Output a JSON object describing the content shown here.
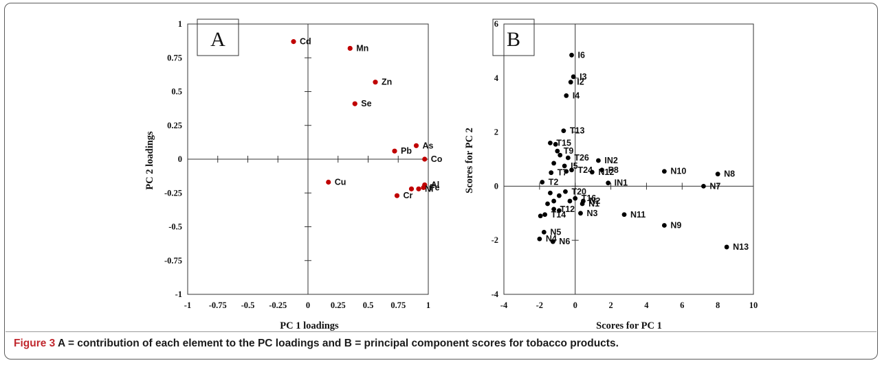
{
  "caption": {
    "label": "Figure 3",
    "text": " A = contribution of each element to the PC loadings and B = principal component scores for tobacco products."
  },
  "colors": {
    "loadings_marker": "#c00000",
    "scores_marker": "#000000",
    "axis": "#333333"
  },
  "chart_data": [
    {
      "panel": "A",
      "type": "scatter",
      "title": "",
      "xlabel": "PC 1 loadings",
      "ylabel": "PC 2 loadings",
      "xlim": [
        -1,
        1
      ],
      "ylim": [
        -1,
        1
      ],
      "xticks": [
        "-1",
        "-0.75",
        "-0.5",
        "-0.25",
        "0",
        "0.25",
        "0.5",
        "0.75",
        "1"
      ],
      "yticks": [
        "-1",
        "-0.75",
        "-0.5",
        "-0.25",
        "0",
        "0.25",
        "0.5",
        "0.75",
        "1"
      ],
      "grid": false,
      "marker_color": "#c00000",
      "points": [
        {
          "label": "Cd",
          "x": -0.12,
          "y": 0.87
        },
        {
          "label": "Mn",
          "x": 0.35,
          "y": 0.82
        },
        {
          "label": "Zn",
          "x": 0.56,
          "y": 0.57
        },
        {
          "label": "Se",
          "x": 0.39,
          "y": 0.41
        },
        {
          "label": "Pb",
          "x": 0.72,
          "y": 0.06
        },
        {
          "label": "As",
          "x": 0.9,
          "y": 0.1
        },
        {
          "label": "Co",
          "x": 0.97,
          "y": 0.0
        },
        {
          "label": "Cu",
          "x": 0.17,
          "y": -0.17
        },
        {
          "label": "Al",
          "x": 0.97,
          "y": -0.19
        },
        {
          "label": "Ni",
          "x": 0.92,
          "y": -0.22
        },
        {
          "label": "Fe",
          "x": 0.96,
          "y": -0.21
        },
        {
          "label": "Cr",
          "x": 0.74,
          "y": -0.27
        },
        {
          "label": "",
          "x": 0.86,
          "y": -0.22
        }
      ]
    },
    {
      "panel": "B",
      "type": "scatter",
      "title": "",
      "xlabel": "Scores for PC 1",
      "ylabel": "Scores for PC 2",
      "xlim": [
        -4,
        10
      ],
      "ylim": [
        -4,
        6
      ],
      "xticks": [
        "-4",
        "-2",
        "0",
        "2",
        "4",
        "6",
        "8",
        "10"
      ],
      "yticks": [
        "-4",
        "-2",
        "0",
        "2",
        "4",
        "6"
      ],
      "grid": false,
      "marker_color": "#000000",
      "points": [
        {
          "label": "I6",
          "x": -0.2,
          "y": 4.85
        },
        {
          "label": "I3",
          "x": -0.1,
          "y": 4.05
        },
        {
          "label": "I2",
          "x": -0.25,
          "y": 3.85
        },
        {
          "label": "I4",
          "x": -0.5,
          "y": 3.35
        },
        {
          "label": "T13",
          "x": -0.65,
          "y": 2.05
        },
        {
          "label": "T15",
          "x": -1.4,
          "y": 1.6
        },
        {
          "label": "",
          "x": -1.1,
          "y": 1.55
        },
        {
          "label": "T9",
          "x": -1.0,
          "y": 1.3
        },
        {
          "label": "",
          "x": -0.85,
          "y": 1.15
        },
        {
          "label": "T26",
          "x": -0.4,
          "y": 1.05
        },
        {
          "label": "IN2",
          "x": 1.3,
          "y": 0.95
        },
        {
          "label": "I5",
          "x": -0.6,
          "y": 0.75
        },
        {
          "label": "T24",
          "x": -0.2,
          "y": 0.6
        },
        {
          "label": "",
          "x": -1.2,
          "y": 0.85
        },
        {
          "label": "",
          "x": -0.5,
          "y": 0.55
        },
        {
          "label": "P8",
          "x": 1.5,
          "y": 0.6
        },
        {
          "label": "N12",
          "x": 0.95,
          "y": 0.52
        },
        {
          "label": "T7",
          "x": -1.35,
          "y": 0.5
        },
        {
          "label": "IN1",
          "x": 1.85,
          "y": 0.12
        },
        {
          "label": "N10",
          "x": 5.0,
          "y": 0.55
        },
        {
          "label": "N8",
          "x": 8.0,
          "y": 0.45
        },
        {
          "label": "N7",
          "x": 7.2,
          "y": 0.0
        },
        {
          "label": "T2",
          "x": -1.85,
          "y": 0.15
        },
        {
          "label": "T20",
          "x": -0.55,
          "y": -0.2
        },
        {
          "label": "",
          "x": -1.4,
          "y": -0.25
        },
        {
          "label": "T16",
          "x": 0.0,
          "y": -0.45
        },
        {
          "label": "N2",
          "x": 0.45,
          "y": -0.55
        },
        {
          "label": "",
          "x": -0.9,
          "y": -0.35
        },
        {
          "label": "",
          "x": -0.3,
          "y": -0.55
        },
        {
          "label": "",
          "x": -1.55,
          "y": -0.65
        },
        {
          "label": "",
          "x": -1.2,
          "y": -0.55
        },
        {
          "label": "N1",
          "x": 0.4,
          "y": -0.65
        },
        {
          "label": "T12",
          "x": -1.2,
          "y": -0.85
        },
        {
          "label": "N3",
          "x": 0.3,
          "y": -1.0
        },
        {
          "label": "T14",
          "x": -1.7,
          "y": -1.05
        },
        {
          "label": "",
          "x": -1.95,
          "y": -1.1
        },
        {
          "label": "",
          "x": -0.9,
          "y": -0.9
        },
        {
          "label": "N11",
          "x": 2.75,
          "y": -1.05
        },
        {
          "label": "N9",
          "x": 5.0,
          "y": -1.45
        },
        {
          "label": "N13",
          "x": 8.5,
          "y": -2.25
        },
        {
          "label": "N5",
          "x": -1.75,
          "y": -1.7
        },
        {
          "label": "N4",
          "x": -2.0,
          "y": -1.95
        },
        {
          "label": "N6",
          "x": -1.25,
          "y": -2.05
        }
      ]
    }
  ]
}
